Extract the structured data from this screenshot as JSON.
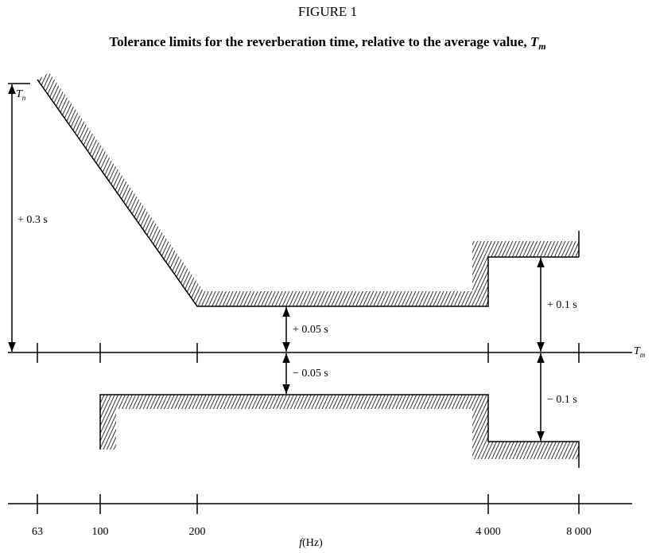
{
  "figure_label": "FIGURE 1",
  "title": "Tolerance limits for the reverberation time, relative to the average value,",
  "title_symbol": "T",
  "title_symbol_sub": "m",
  "upper_ref": {
    "symbol": "T",
    "sub": "n"
  },
  "axis_ref": {
    "symbol": "T",
    "sub": "m"
  },
  "annotations": [
    "+ 0.3 s",
    "+ 0.05 s",
    "− 0.05 s",
    "+ 0.1 s",
    "− 0.1 s"
  ],
  "frequency_labels": [
    "63",
    "100",
    "200",
    "4 000",
    "8 000"
  ],
  "axis_label": {
    "symbol": "f",
    "unit": "(Hz)"
  }
}
